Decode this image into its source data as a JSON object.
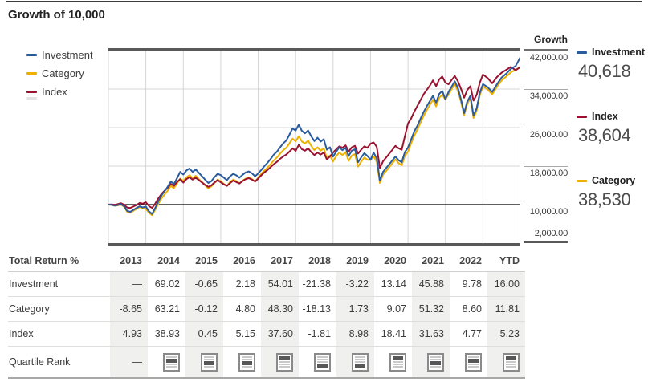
{
  "title": "Growth of 10,000",
  "colors": {
    "investment": "#2a5c9e",
    "category": "#eeb000",
    "index": "#9a122f",
    "grid": "#d6d6d6",
    "baseline": "#000000"
  },
  "legend_left": [
    {
      "id": "investment",
      "label": "Investment",
      "color": "#2a5c9e"
    },
    {
      "id": "category",
      "label": "Category",
      "color": "#eeb000"
    },
    {
      "id": "index",
      "label": "Index",
      "color": "#9a122f"
    }
  ],
  "y_axis_title": "Growth",
  "legend_right": [
    {
      "id": "investment",
      "label": "Investment",
      "value": "40,618",
      "color": "#2a5c9e"
    },
    {
      "id": "index",
      "label": "Index",
      "value": "38,604",
      "color": "#9a122f"
    },
    {
      "id": "category",
      "label": "Category",
      "value": "38,530",
      "color": "#eeb000"
    }
  ],
  "chart_data": {
    "type": "line",
    "title": "Growth of 10,000",
    "x_labels": [
      "2013",
      "2014",
      "2015",
      "2016",
      "2017",
      "2018",
      "2019",
      "2020",
      "2021",
      "2022",
      "YTD"
    ],
    "ylim": [
      2000,
      42000
    ],
    "baseline": 10000,
    "grid": true,
    "points_per_year": 12,
    "ytd_points": 8,
    "y_ticks": [
      {
        "label": "42,000.00",
        "value": 42000
      },
      {
        "label": "34,000.00",
        "value": 34000
      },
      {
        "label": "26,000.00",
        "value": 26000
      },
      {
        "label": "18,000.00",
        "value": 18000
      },
      {
        "label": "10,000.00",
        "value": 10000
      },
      {
        "label": "2,000.00",
        "value": 2000
      }
    ],
    "series": [
      {
        "id": "category",
        "name": "Category",
        "color": "#eeb000",
        "final_value": 38530,
        "values": [
          10000,
          9950,
          9750,
          9850,
          10000,
          9600,
          8500,
          8300,
          8700,
          9100,
          9500,
          9250,
          9135,
          8300,
          7800,
          8900,
          10200,
          11300,
          12100,
          12900,
          13900,
          13400,
          14400,
          15400,
          14909,
          15700,
          16100,
          15500,
          16000,
          15300,
          14700,
          14000,
          13400,
          13800,
          14500,
          15200,
          14891,
          14300,
          13900,
          14700,
          15200,
          14900,
          14400,
          15000,
          15400,
          15700,
          15300,
          14800,
          15606,
          16400,
          17100,
          17700,
          18400,
          19200,
          19800,
          20600,
          21300,
          21800,
          22700,
          23700,
          23144,
          24200,
          23100,
          22700,
          23300,
          22200,
          21300,
          21900,
          21200,
          21700,
          19700,
          20200,
          18948,
          20100,
          20800,
          20300,
          20900,
          19100,
          20200,
          20500,
          17900,
          18900,
          19800,
          19300,
          19276,
          20000,
          18900,
          14500,
          16200,
          17000,
          17800,
          18600,
          19400,
          18600,
          18200,
          20100,
          21024,
          22700,
          24300,
          25600,
          27000,
          28400,
          29600,
          30700,
          31800,
          30400,
          32200,
          32800,
          31814,
          32900,
          34000,
          35000,
          33600,
          31300,
          28600,
          30900,
          32100,
          28000,
          29500,
          32700,
          34548,
          33900,
          32900,
          34500,
          35800,
          36600,
          37500,
          38000,
          38530
        ]
      },
      {
        "id": "index",
        "name": "Index",
        "color": "#9a122f",
        "final_value": 38604,
        "values": [
          10000,
          10050,
          9950,
          10100,
          10300,
          10000,
          9400,
          9300,
          9600,
          9900,
          10350,
          10200,
          10493,
          9700,
          9300,
          10200,
          11300,
          12200,
          12900,
          13500,
          14300,
          13900,
          14700,
          15300,
          14578,
          15300,
          15700,
          15200,
          15600,
          15100,
          14600,
          14100,
          13700,
          14000,
          14600,
          15100,
          14644,
          14200,
          13900,
          14500,
          15000,
          14700,
          14400,
          14900,
          15300,
          15500,
          15200,
          14800,
          15398,
          16100,
          16700,
          17200,
          17800,
          18400,
          18900,
          19500,
          20000,
          20400,
          21000,
          21700,
          21188,
          22400,
          21500,
          21200,
          21700,
          20900,
          20300,
          20800,
          20400,
          20800,
          19400,
          20000,
          20804,
          21500,
          22100,
          21800,
          22300,
          21000,
          21900,
          22200,
          20600,
          21400,
          22100,
          21800,
          22672,
          22900,
          22000,
          17600,
          19000,
          19800,
          20600,
          21400,
          22200,
          21700,
          21400,
          24200,
          26846,
          27900,
          29300,
          30500,
          31700,
          32900,
          33800,
          34700,
          35800,
          34600,
          36000,
          36600,
          35337,
          35000,
          35900,
          36700,
          35600,
          34000,
          32200,
          33800,
          34600,
          31600,
          32800,
          35300,
          37023,
          36300,
          35200,
          36500,
          37400,
          38000,
          38600,
          37900,
          38604
        ]
      },
      {
        "id": "investment",
        "name": "Investment",
        "color": "#2a5c9e",
        "final_value": 40618,
        "values": [
          10000,
          9950,
          9800,
          9900,
          10100,
          9700,
          8700,
          8500,
          8900,
          9300,
          9650,
          9400,
          9611,
          8600,
          8050,
          9300,
          10700,
          11900,
          12800,
          13700,
          14800,
          14300,
          15500,
          16800,
          16244,
          17100,
          17500,
          16800,
          17300,
          16600,
          15900,
          15200,
          14500,
          14900,
          15700,
          16400,
          16138,
          15600,
          15100,
          15900,
          16400,
          16100,
          15600,
          16200,
          16700,
          16900,
          16500,
          15900,
          16490,
          17200,
          18000,
          18700,
          19500,
          20400,
          21000,
          21900,
          22700,
          23300,
          24500,
          25800,
          25396,
          26600,
          25300,
          24800,
          25400,
          24200,
          23200,
          23900,
          23100,
          23600,
          21400,
          21900,
          19966,
          21000,
          21900,
          21300,
          21800,
          20100,
          21200,
          21500,
          18800,
          19800,
          20700,
          20100,
          19323,
          20800,
          19600,
          15000,
          16800,
          17600,
          18400,
          19200,
          20000,
          19200,
          18800,
          20900,
          21862,
          23500,
          25200,
          26400,
          27800,
          29200,
          30400,
          31500,
          32600,
          31200,
          33000,
          33600,
          31893,
          33400,
          34500,
          35600,
          34200,
          31800,
          29000,
          31400,
          32600,
          28500,
          30000,
          33200,
          35012,
          34400,
          33400,
          35000,
          36400,
          37200,
          38200,
          38800,
          40618
        ]
      }
    ]
  },
  "table": {
    "header": [
      "Total Return %",
      "2013",
      "2014",
      "2015",
      "2016",
      "2017",
      "2018",
      "2019",
      "2020",
      "2021",
      "2022",
      "YTD"
    ],
    "shaded_columns": [
      1,
      3,
      5,
      7,
      9,
      11
    ],
    "rows": [
      {
        "label": "Investment",
        "type": "number",
        "values": [
          "—",
          "69.02",
          "-0.65",
          "2.18",
          "54.01",
          "-21.38",
          "-3.22",
          "13.14",
          "45.88",
          "9.78",
          "16.00"
        ]
      },
      {
        "label": "Category",
        "type": "number",
        "values": [
          "-8.65",
          "63.21",
          "-0.12",
          "4.80",
          "48.30",
          "-18.13",
          "1.73",
          "9.07",
          "51.32",
          "8.60",
          "11.81"
        ]
      },
      {
        "label": "Index",
        "type": "number",
        "values": [
          "4.93",
          "38.93",
          "0.45",
          "5.15",
          "37.60",
          "-1.81",
          "8.98",
          "18.41",
          "31.63",
          "4.77",
          "5.23"
        ]
      },
      {
        "label": "Quartile Rank",
        "type": "quartile",
        "values": [
          "—",
          2,
          3,
          3,
          1,
          4,
          4,
          1,
          3,
          2,
          1
        ]
      }
    ]
  }
}
